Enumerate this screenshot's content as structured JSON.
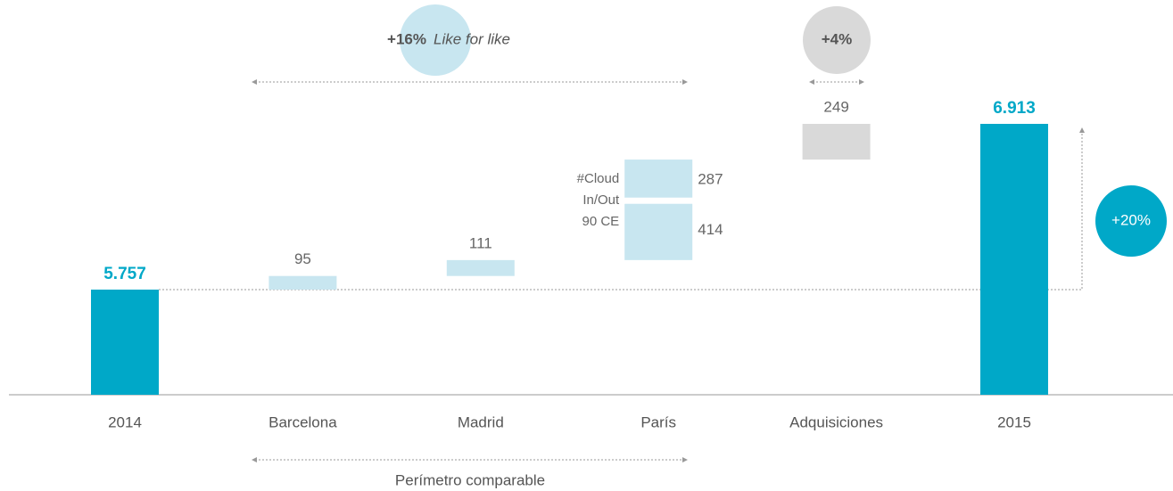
{
  "chart_data": {
    "type": "waterfall",
    "colors": {
      "total": "#00a8c8",
      "increase": "#c8e6f0",
      "acquisition": "#d9d9d9"
    },
    "bars": [
      {
        "category": "2014",
        "kind": "total",
        "values": [
          5757
        ],
        "value_labels": [
          "5.757"
        ]
      },
      {
        "category": "Barcelona",
        "kind": "increase",
        "values": [
          95
        ]
      },
      {
        "category": "Madrid",
        "kind": "increase",
        "values": [
          111
        ]
      },
      {
        "category": "París",
        "kind": "increase",
        "values": [
          414,
          287
        ],
        "note": [
          "#Cloud",
          "In/Out",
          "90 CE"
        ]
      },
      {
        "category": "Adquisiciones",
        "kind": "acquisition",
        "values": [
          249
        ]
      },
      {
        "category": "2015",
        "kind": "total",
        "values": [
          6913
        ],
        "value_labels": [
          "6.913"
        ]
      }
    ],
    "annotations": {
      "like_for_like": {
        "pct": "+16%",
        "text": "Like for like"
      },
      "acquisitions": {
        "pct": "+4%"
      },
      "total_growth": {
        "pct": "+20%"
      },
      "perimeter": "Perímetro comparable"
    }
  }
}
